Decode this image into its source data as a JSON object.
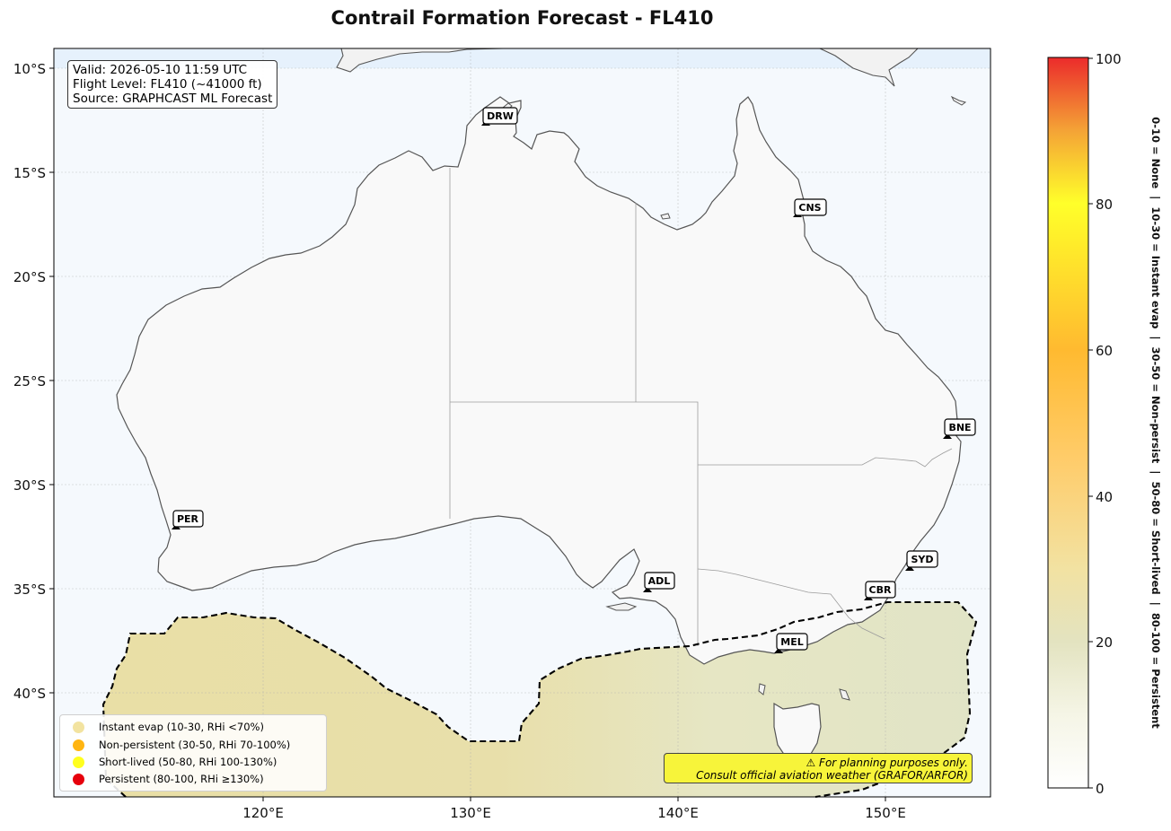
{
  "title": "Contrail Formation Forecast - FL410",
  "info": {
    "valid": "Valid: 2026-05-10 11:59 UTC",
    "flight_level": "Flight Level: FL410 (~41000 ft)",
    "source": "Source: GRAPHCAST ML Forecast"
  },
  "axes": {
    "lat_ticks": [
      "10°S",
      "15°S",
      "20°S",
      "25°S",
      "30°S",
      "35°S",
      "40°S"
    ],
    "lon_ticks": [
      "120°E",
      "130°E",
      "140°E",
      "150°E"
    ]
  },
  "cities": [
    {
      "code": "DRW"
    },
    {
      "code": "CNS"
    },
    {
      "code": "BNE"
    },
    {
      "code": "PER"
    },
    {
      "code": "SYD"
    },
    {
      "code": "ADL"
    },
    {
      "code": "CBR"
    },
    {
      "code": "MEL"
    }
  ],
  "legend": [
    {
      "label": "Instant evap (10-30, RHi <70%)",
      "color": "#f2e3a0"
    },
    {
      "label": "Non-persistent (30-50, RHi 70-100%)",
      "color": "#ffb511"
    },
    {
      "label": "Short-lived (50-80, RHi 100-130%)",
      "color": "#ffff1e"
    },
    {
      "label": "Persistent (80-100, RHi ≥130%)",
      "color": "#e6000c"
    }
  ],
  "disclaimer": {
    "line1": "⚠ For planning purposes only.",
    "line2": "Consult official aviation weather (GRAFOR/ARFOR)"
  },
  "colorbar": {
    "ticks": [
      "0",
      "20",
      "40",
      "60",
      "80",
      "100"
    ],
    "side_label": "0-10 = None  |  10-30 = Instant evap  |  30-50 = Non-persist  |  50-80 = Short-lived  |  80-100 = Persistent"
  }
}
